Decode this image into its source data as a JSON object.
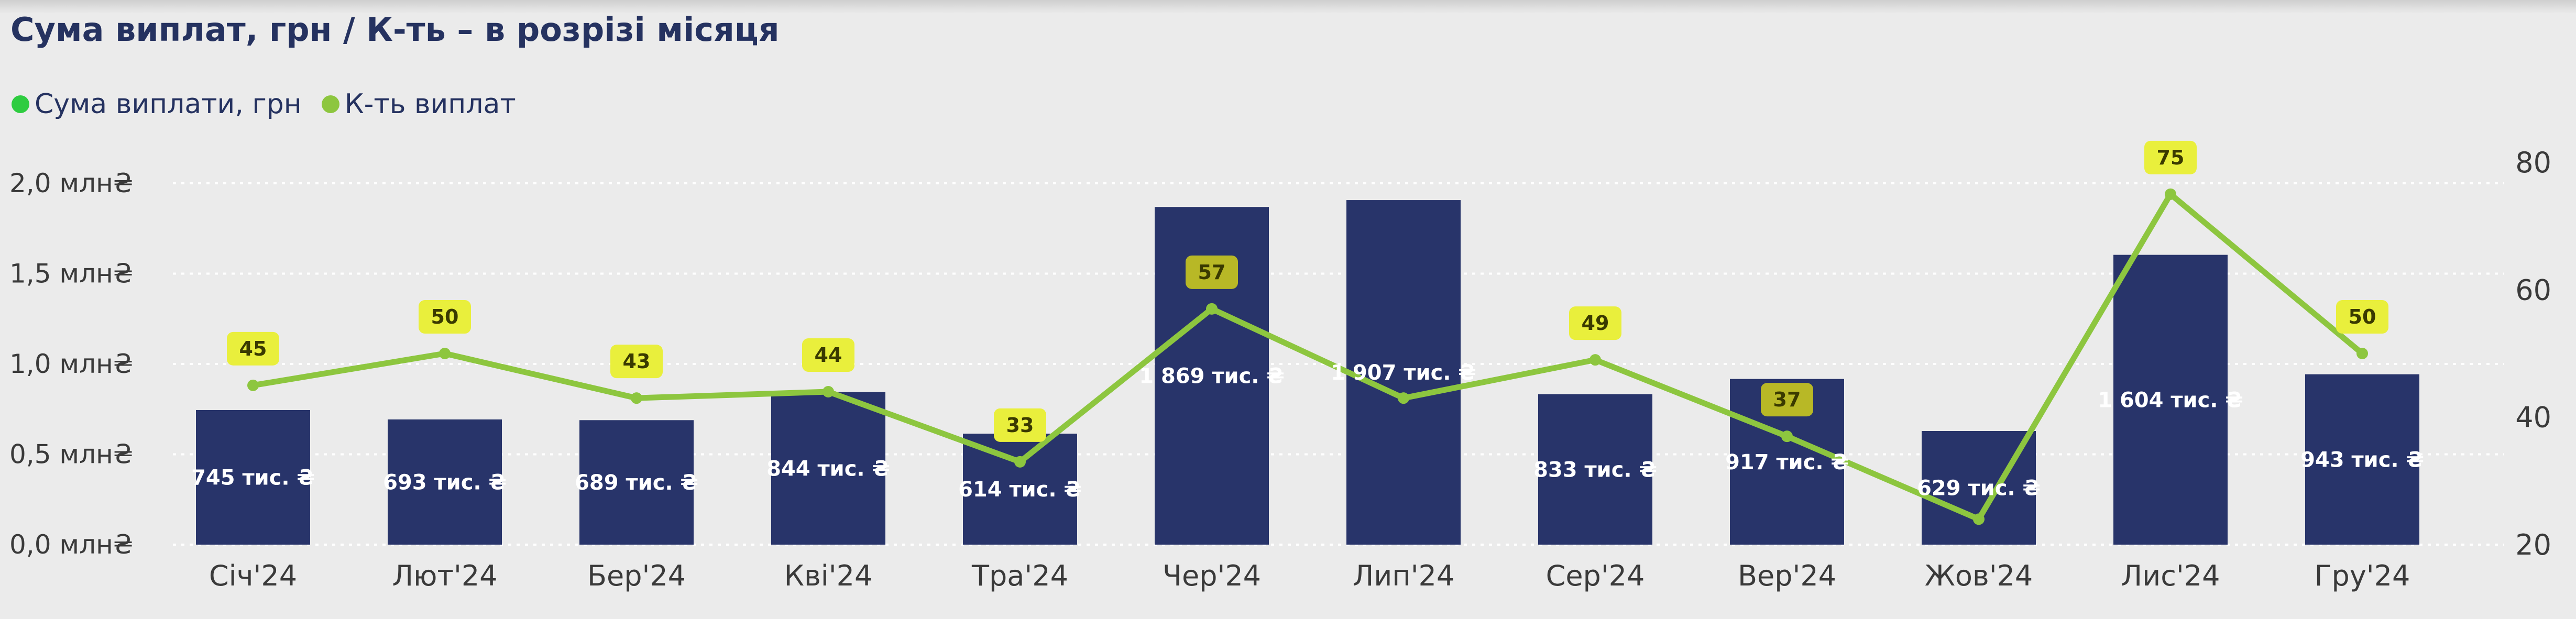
{
  "title": "Сума виплат, грн / К-ть – в розрізі місяця",
  "legend": [
    {
      "label": "Сума виплати, грн",
      "color": "#2ecc40"
    },
    {
      "label": "К-ть виплат",
      "color": "#8dc63f"
    }
  ],
  "colors": {
    "bar": "#28346a",
    "line": "#8dc63f",
    "label_badge": "#e9ef3c",
    "label_badge_dark": "#b8b826",
    "grid": "#ffffff"
  },
  "chart_data": {
    "type": "bar",
    "categories": [
      "Січ'24",
      "Лют'24",
      "Бер'24",
      "Кві'24",
      "Тра'24",
      "Чер'24",
      "Лип'24",
      "Сер'24",
      "Вер'24",
      "Жов'24",
      "Лис'24",
      "Гру'24"
    ],
    "series": [
      {
        "name": "Сума виплати, грн",
        "type": "bar",
        "axis": "left",
        "values": [
          745000,
          693000,
          689000,
          844000,
          614000,
          1869000,
          1907000,
          833000,
          917000,
          629000,
          1604000,
          943000
        ],
        "labels": [
          "745 тис. ₴",
          "693 тис. ₴",
          "689 тис. ₴",
          "844 тис. ₴",
          "614 тис. ₴",
          "1 869 тис. ₴",
          "1 907 тис. ₴",
          "833 тис. ₴",
          "917 тис. ₴",
          "629 тис. ₴",
          "1 604 тис. ₴",
          "943 тис. ₴"
        ]
      },
      {
        "name": "К-ть виплат",
        "type": "line",
        "axis": "right",
        "values": [
          45,
          50,
          43,
          44,
          33,
          57,
          43,
          49,
          37,
          24,
          75,
          50
        ],
        "labels": [
          "45",
          "50",
          "43",
          "44",
          "33",
          "57",
          null,
          "49",
          "37",
          null,
          "75",
          "50"
        ],
        "label_style": [
          "light",
          "light",
          "light",
          "light",
          "light",
          "dark",
          null,
          "light",
          "dark",
          null,
          "light",
          "light"
        ]
      }
    ],
    "y_left": {
      "ticks": [
        0,
        500000,
        1000000,
        1500000,
        2000000
      ],
      "tick_labels": [
        "0,0 млн₴",
        "0,5 млн₴",
        "1,0 млн₴",
        "1,5 млн₴",
        "2,0 млн₴"
      ],
      "range": [
        0,
        2000000
      ]
    },
    "y_right": {
      "ticks": [
        20,
        40,
        60,
        80
      ],
      "tick_labels": [
        "20",
        "40",
        "60",
        "80"
      ],
      "range": [
        20,
        80
      ]
    },
    "grid": true,
    "legend_position": "top-left"
  }
}
